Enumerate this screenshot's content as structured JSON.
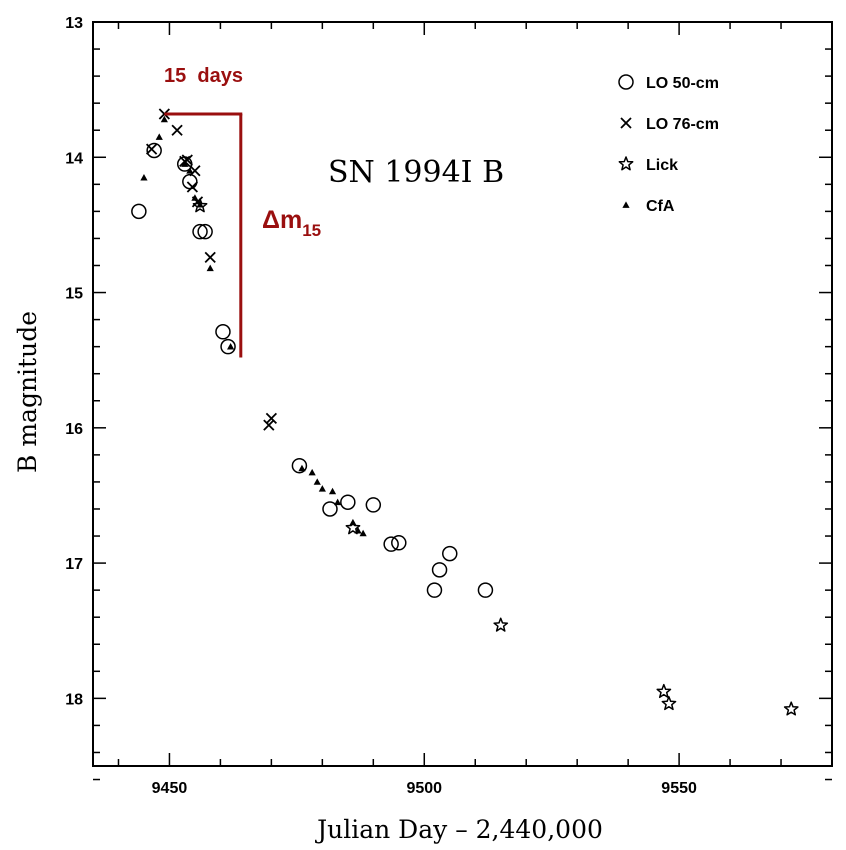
{
  "chart_data": {
    "type": "scatter",
    "title": "SN 1994I B",
    "xlabel": "Julian Day  –  2,440,000",
    "ylabel": "B magnitude",
    "xlim": [
      9435,
      9580
    ],
    "ylim": [
      13,
      18.5
    ],
    "y_inverted": true,
    "grid": false,
    "legend_position": "top-right",
    "x_ticks": [
      9450,
      9500,
      9550
    ],
    "y_ticks": [
      13,
      14,
      15,
      16,
      17,
      18
    ],
    "series": [
      {
        "name": "LO 50-cm",
        "marker": "circle",
        "x": [
          9444,
          9447,
          9453,
          9454,
          9456,
          9457,
          9460.5,
          9461.5,
          9475.5,
          9481.5,
          9485,
          9490,
          9493.5,
          9495,
          9502,
          9503,
          9505,
          9512
        ],
        "y": [
          14.4,
          13.95,
          14.05,
          14.18,
          14.55,
          14.55,
          15.29,
          15.4,
          16.28,
          16.6,
          16.55,
          16.57,
          16.86,
          16.85,
          17.2,
          17.05,
          16.93,
          17.2
        ]
      },
      {
        "name": "LO 76-cm",
        "marker": "cross",
        "x": [
          9446.5,
          9449,
          9451.5,
          9453,
          9453.5,
          9454.5,
          9455,
          9455.5,
          9458,
          9469.5,
          9470
        ],
        "y": [
          13.94,
          13.68,
          13.8,
          14.03,
          14.02,
          14.22,
          14.1,
          14.33,
          14.74,
          15.98,
          15.93
        ]
      },
      {
        "name": "Lick",
        "marker": "star",
        "x": [
          9456,
          9486,
          9515,
          9547,
          9548,
          9572
        ],
        "y": [
          14.36,
          16.74,
          17.46,
          17.95,
          18.04,
          18.08
        ]
      },
      {
        "name": "CfA",
        "marker": "triangle",
        "x": [
          9445,
          9448,
          9449,
          9453,
          9454,
          9455,
          9456,
          9458,
          9462,
          9476,
          9478,
          9479,
          9480,
          9482,
          9483,
          9486,
          9487,
          9488
        ],
        "y": [
          14.15,
          13.85,
          13.72,
          14.05,
          14.1,
          14.3,
          14.35,
          14.82,
          15.4,
          16.3,
          16.33,
          16.4,
          16.45,
          16.47,
          16.55,
          16.7,
          16.76,
          16.78
        ]
      }
    ],
    "annotations": {
      "days_label": "15  days",
      "delta_label": "Δm",
      "delta_subscript": "15",
      "bracket_x": [
        9449,
        9464
      ],
      "bracket_y": [
        13.68,
        15.48
      ]
    }
  }
}
